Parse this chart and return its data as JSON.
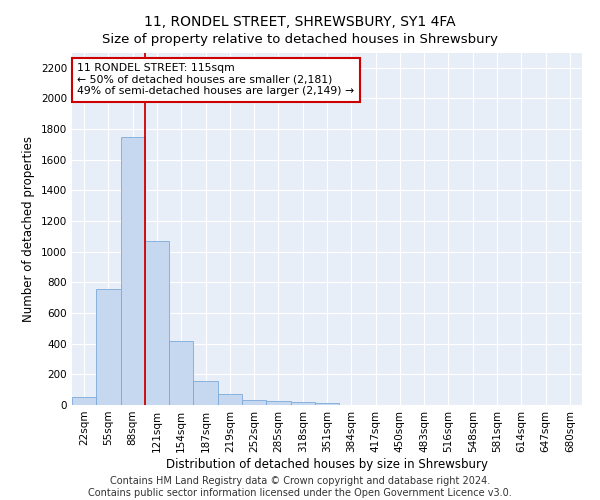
{
  "title": "11, RONDEL STREET, SHREWSBURY, SY1 4FA",
  "subtitle": "Size of property relative to detached houses in Shrewsbury",
  "xlabel": "Distribution of detached houses by size in Shrewsbury",
  "ylabel": "Number of detached properties",
  "bar_labels": [
    "22sqm",
    "55sqm",
    "88sqm",
    "121sqm",
    "154sqm",
    "187sqm",
    "219sqm",
    "252sqm",
    "285sqm",
    "318sqm",
    "351sqm",
    "384sqm",
    "417sqm",
    "450sqm",
    "483sqm",
    "516sqm",
    "548sqm",
    "581sqm",
    "614sqm",
    "647sqm",
    "680sqm"
  ],
  "bar_values": [
    50,
    760,
    1750,
    1070,
    415,
    155,
    70,
    35,
    25,
    20,
    15,
    0,
    0,
    0,
    0,
    0,
    0,
    0,
    0,
    0,
    0
  ],
  "bar_color": "#c5d8f0",
  "bar_edge_color": "#7aabda",
  "vline_color": "#cc0000",
  "annotation_text": "11 RONDEL STREET: 115sqm\n← 50% of detached houses are smaller (2,181)\n49% of semi-detached houses are larger (2,149) →",
  "annotation_box_color": "#ffffff",
  "annotation_box_edge": "#cc0000",
  "ylim": [
    0,
    2300
  ],
  "yticks": [
    0,
    200,
    400,
    600,
    800,
    1000,
    1200,
    1400,
    1600,
    1800,
    2000,
    2200
  ],
  "background_color": "#e8eef8",
  "grid_color": "#ffffff",
  "footer_line1": "Contains HM Land Registry data © Crown copyright and database right 2024.",
  "footer_line2": "Contains public sector information licensed under the Open Government Licence v3.0.",
  "title_fontsize": 10,
  "axis_label_fontsize": 8.5,
  "tick_fontsize": 7.5,
  "footer_fontsize": 7
}
